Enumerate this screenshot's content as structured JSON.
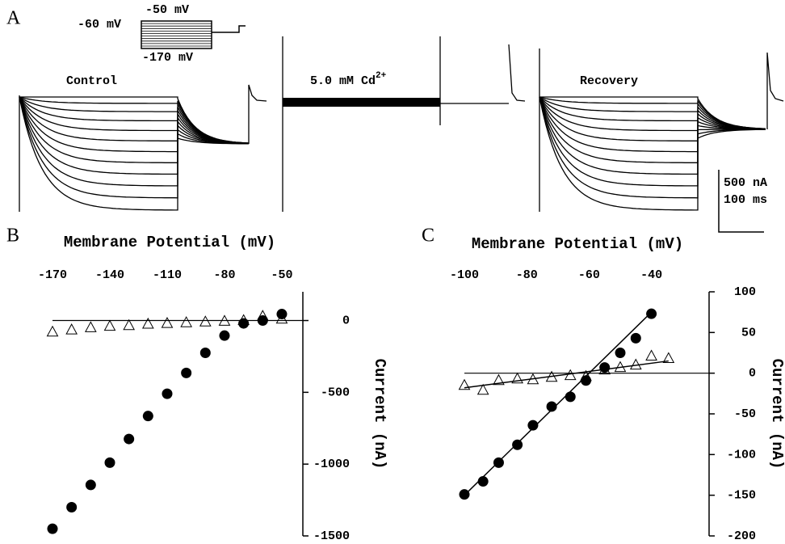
{
  "panel_a": {
    "panel_label": "A",
    "holding": "-60 mV",
    "step_top": "-50 mV",
    "step_bottom": "-170 mV",
    "control": "Control",
    "cd_label": {
      "text": "5.0 mM Cd",
      "superscript": "2+"
    },
    "recovery": "Recovery",
    "scale_current": "500 nA",
    "scale_time": "100 ms"
  },
  "chart_data": [
    {
      "type": "scatter",
      "panel_label": "B",
      "x_label": "Membrane Potential (mV)",
      "y_label": "Current (nA)",
      "xlim": [
        -170,
        -39
      ],
      "xticks": [
        -170,
        -140,
        -110,
        -80,
        -50
      ],
      "ylim": [
        -1500,
        200
      ],
      "yticks": [
        0,
        -500,
        -1000,
        -1500
      ],
      "zero_line": true,
      "series": [
        {
          "marker": "circle",
          "color": "#000000",
          "x": [
            -170,
            -160,
            -150,
            -140,
            -130,
            -120,
            -110,
            -100,
            -90,
            -80,
            -70,
            -60,
            -50
          ],
          "values": [
            -1450,
            -1300,
            -1145,
            -990,
            -825,
            -665,
            -510,
            -365,
            -225,
            -105,
            -20,
            0,
            45
          ]
        },
        {
          "marker": "triangle",
          "color": "#000000",
          "x": [
            -170,
            -160,
            -150,
            -140,
            -130,
            -120,
            -110,
            -100,
            -90,
            -80,
            -70,
            -60,
            -50
          ],
          "values": [
            -80,
            -65,
            -50,
            -40,
            -35,
            -25,
            -20,
            -15,
            -10,
            -5,
            0,
            30,
            10
          ]
        }
      ]
    },
    {
      "type": "scatter",
      "panel_label": "C",
      "x_label": "Membrane Potential (mV)",
      "y_label": "Current (nA)",
      "xlim": [
        -100,
        -21.5
      ],
      "xticks": [
        -100,
        -80,
        -60,
        -40
      ],
      "ylim": [
        -200,
        100
      ],
      "yticks": [
        100,
        50,
        0,
        -50,
        -100,
        -150,
        -200
      ],
      "zero_line": true,
      "series": [
        {
          "marker": "circle",
          "color": "#000000",
          "x": [
            -100,
            -94,
            -89,
            -83,
            -78,
            -72,
            -66,
            -61,
            -55,
            -50,
            -45,
            -40
          ],
          "values": [
            -149,
            -133,
            -110,
            -88,
            -64,
            -41,
            -29,
            -9,
            7,
            25,
            43,
            73
          ]
        },
        {
          "marker": "triangle",
          "color": "#000000",
          "x": [
            -100,
            -94,
            -89,
            -83,
            -78,
            -72,
            -66,
            -61,
            -55,
            -50,
            -45,
            -40,
            -34.5
          ],
          "values": [
            -15,
            -21,
            -9,
            -7,
            -8,
            -5,
            -3,
            -4,
            4,
            7,
            10,
            21,
            18
          ]
        }
      ],
      "fit_lines": [
        {
          "color": "#000000",
          "x": [
            -100,
            -40
          ],
          "values": [
            -150,
            75
          ]
        },
        {
          "color": "#000000",
          "x": [
            -100,
            -34.5
          ],
          "values": [
            -18,
            15
          ]
        }
      ]
    }
  ]
}
